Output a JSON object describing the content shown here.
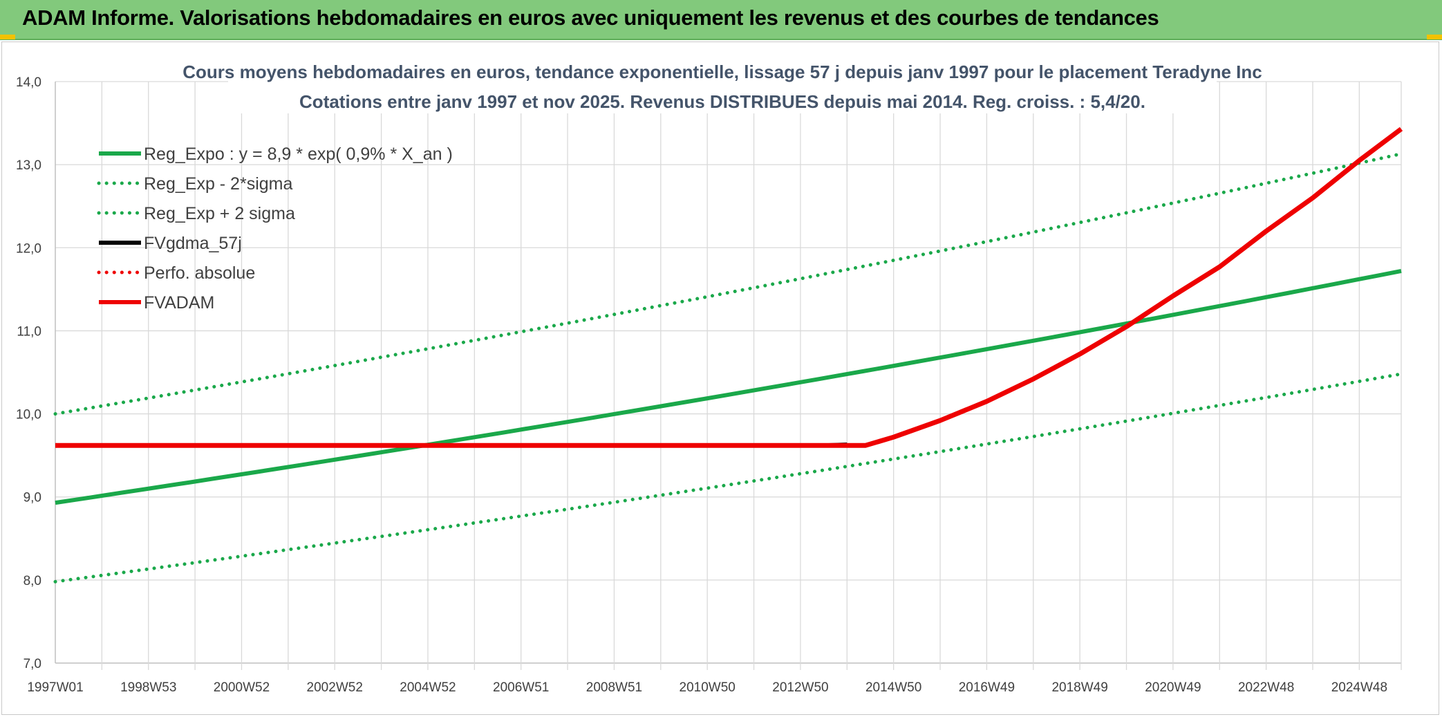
{
  "banner": {
    "title": "ADAM Informe. Valorisations hebdomadaires en euros avec uniquement les revenus et des courbes de tendances"
  },
  "colors": {
    "banner": "#82c97c",
    "green": "#1aa84a",
    "red": "#ee0000",
    "black": "#000000"
  },
  "chart_data": {
    "type": "line",
    "title": "Cours moyens hebdomadaires en euros, tendance exponentielle, lissage 57 j depuis janv 1997 pour le placement Teradyne Inc",
    "subtitle": "Cotations entre janv 1997 et nov 2025. Revenus DISTRIBUES depuis mai 2014. Reg. croiss. : 5,4/20.",
    "xlabel": "",
    "ylabel": "",
    "ylim": [
      7.0,
      14.0
    ],
    "xlim": [
      1997.0,
      2025.9
    ],
    "y_ticks": [
      "7,0",
      "8,0",
      "9,0",
      "10,0",
      "11,0",
      "12,0",
      "13,0",
      "14,0"
    ],
    "x_ticks": [
      "1997W01",
      "1998W53",
      "2000W52",
      "2002W52",
      "2004W52",
      "2006W51",
      "2008W51",
      "2010W50",
      "2012W50",
      "2014W50",
      "2016W49",
      "2018W49",
      "2020W49",
      "2022W48",
      "2024W48"
    ],
    "legend_position": "top-left",
    "grid": true,
    "series": [
      {
        "name": "Reg_Expo : y = 8,9 * exp( 0,9% *  X_an )",
        "color": "#1aa84a",
        "style": "solid",
        "x": [
          1997.0,
          2025.9
        ],
        "y": [
          8.93,
          11.72
        ]
      },
      {
        "name": "Reg_Exp - 2*sigma",
        "color": "#1aa84a",
        "style": "dotted",
        "x": [
          1997.0,
          2025.9
        ],
        "y": [
          7.98,
          10.48
        ]
      },
      {
        "name": "Reg_Exp + 2 sigma",
        "color": "#1aa84a",
        "style": "dotted",
        "x": [
          1997.0,
          2025.9
        ],
        "y": [
          10.0,
          13.13
        ]
      },
      {
        "name": "FVgdma_57j",
        "color": "#000000",
        "style": "solid",
        "x": [
          1997.0,
          2013.5,
          2014.0
        ],
        "y": [
          9.62,
          9.62,
          9.63
        ]
      },
      {
        "name": "Perfo. absolue",
        "color": "#ee0000",
        "style": "dotted",
        "x": [],
        "y": []
      },
      {
        "name": "FVADAM",
        "color": "#ee0000",
        "style": "solid",
        "x": [
          1997.0,
          2014.4,
          2015.0,
          2016.0,
          2017.0,
          2018.0,
          2019.0,
          2020.0,
          2021.0,
          2022.0,
          2023.0,
          2024.0,
          2025.0,
          2025.9
        ],
        "y": [
          9.62,
          9.62,
          9.72,
          9.92,
          10.15,
          10.42,
          10.72,
          11.05,
          11.42,
          11.77,
          12.2,
          12.6,
          13.05,
          13.43
        ]
      }
    ]
  }
}
